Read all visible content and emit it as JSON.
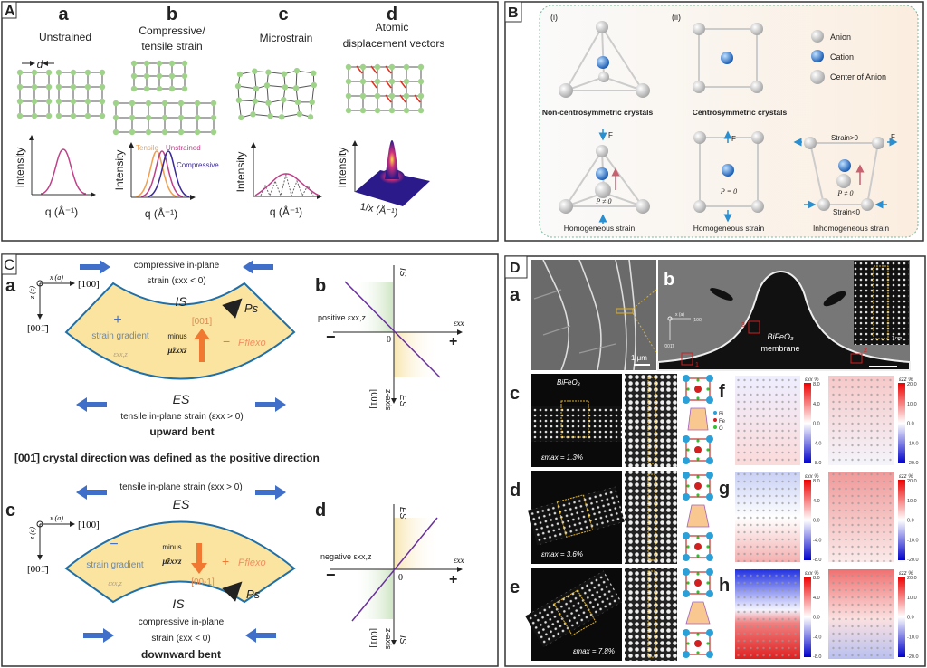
{
  "panel_A": {
    "label": "A",
    "a": {
      "letter": "a",
      "title": "Unstrained",
      "spacing": "d",
      "ylabel": "Intensity",
      "xlabel": "q (Å⁻¹)"
    },
    "b": {
      "letter": "b",
      "title_line1": "Compressive/",
      "title_line2": "tensile strain",
      "ylabel": "Intensity",
      "xlabel": "q (Å⁻¹)",
      "legend": [
        "Tensile",
        "Unstrained",
        "Compressive"
      ],
      "colors": [
        "#f0a050",
        "#c0408a",
        "#3a2a9a"
      ]
    },
    "c": {
      "letter": "c",
      "title": "Microstrain",
      "ylabel": "Intensity",
      "xlabel": "q (Å⁻¹)"
    },
    "d": {
      "letter": "d",
      "title_line1": "Atomic",
      "title_line2": "displacement vectors",
      "ylabel": "Intensity",
      "xlabel": "1/x (Å⁻¹)"
    },
    "lattice_color": "#9fd38a"
  },
  "panel_B": {
    "label": "B",
    "sub_i": "(i)",
    "sub_ii": "(ii)",
    "legend": [
      "Anion",
      "Cation",
      "Center of Anion"
    ],
    "caption_noncentro": "Non-centrosymmetric crystals",
    "caption_centro": "Centrosymmetric crystals",
    "force": "F",
    "p_nonzero": "P ≠ 0",
    "p_zero": "P = 0",
    "strain_pos": "Strain>0",
    "strain_neg": "Strain<0",
    "homogeneous": "Homogeneous strain",
    "inhomogeneous": "Inhomogeneous strain",
    "cation_color": "#3a7fd0"
  },
  "panel_C": {
    "label": "C",
    "a": {
      "letter": "a",
      "top_line1": "compressive in-plane",
      "top_line2": "strain (εxx < 0)",
      "inner": "IS",
      "outer": "ES",
      "bottom_line": "tensile in-plane strain (εxx > 0)",
      "caption": "upward bent",
      "sign": "+",
      "gradient": "strain gradient",
      "gradient_sym": "εxx,z",
      "minus": "minus",
      "mu": "μ̃zxxz",
      "direction": "[001]",
      "pflexo_sign": "−",
      "pflexo": "Pflexo",
      "ps": "Ps"
    },
    "axes": {
      "x": "x (a)",
      "x_dir": "[100]",
      "z": "z (c)",
      "z_dir": "[001̄]"
    },
    "b": {
      "letter": "b",
      "annotation": "positive εxx,z",
      "top": "IS",
      "bottom": "ES",
      "xaxis": "εxx",
      "zero": "0",
      "minus": "−",
      "plus": "+",
      "zaxis": "z-axis",
      "zaxis_dir": "[001̄]"
    },
    "statement": "[001̄] crystal direction was defined as the positive direction",
    "c": {
      "letter": "c",
      "top_line": "tensile in-plane strain (εxx > 0)",
      "outer": "ES",
      "inner": "IS",
      "bottom_line1": "compressive in-plane",
      "bottom_line2": "strain (εxx < 0)",
      "caption": "downward bent",
      "sign": "−",
      "gradient": "strain gradient",
      "gradient_sym": "εxx,z",
      "minus": "minus",
      "mu": "μ̃zxxz",
      "direction": "[00-1]",
      "pflexo_sign": "+",
      "pflexo": "Pflexo",
      "ps": "Ps"
    },
    "d": {
      "letter": "d",
      "annotation": "negative εxx,z",
      "top": "ES",
      "bottom": "IS",
      "xaxis": "εxx",
      "zero": "0",
      "minus": "−",
      "plus": "+",
      "zaxis": "z-axis",
      "zaxis_dir": "[001̄]"
    },
    "fill_color": "#fbe3a0",
    "border_color": "#1f6fa8",
    "arrow_color": "#3f6fc8"
  },
  "panel_D": {
    "label": "D",
    "a": {
      "letter": "a",
      "scale": "1 μm"
    },
    "b": {
      "letter": "b",
      "material": "BiFeO₃",
      "material2": "membrane",
      "x": "x (a)",
      "x_dir": "[100]",
      "z_dir": "[001̄]",
      "box1": "1",
      "box2": "2",
      "box3": "3",
      "inset_scale": "1 nm"
    },
    "rows": [
      {
        "letter": "c",
        "material": "BiFeO₃",
        "strain": "εmax = 1.3%",
        "map_letter": "f"
      },
      {
        "letter": "d",
        "material": "",
        "strain": "εmax = 3.6%",
        "map_letter": "g"
      },
      {
        "letter": "e",
        "material": "",
        "strain": "εmax = 7.8%",
        "map_letter": "h"
      }
    ],
    "model_legend": [
      "Bi",
      "Fe",
      "O"
    ],
    "model_colors": [
      "#2aa0d8",
      "#d02020",
      "#30c030"
    ],
    "cbar_xx": {
      "title": "εxx %",
      "ticks": [
        "8.0",
        "4.0",
        "0.0",
        "-4.0",
        "-8.0"
      ]
    },
    "cbar_zz": {
      "title": "εzz %",
      "ticks": [
        "20.0",
        "10.0",
        "0.0",
        "-10.0",
        "-20.0"
      ]
    }
  }
}
